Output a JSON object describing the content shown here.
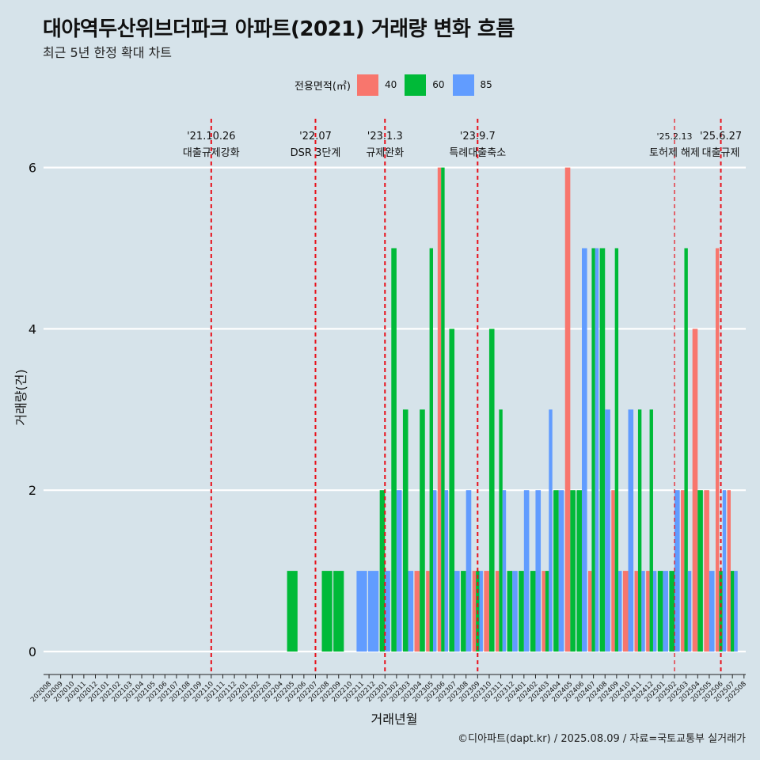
{
  "title": "대야역두산위브더파크 아파트(2021) 거래량 변화 흐름",
  "subtitle": "최근 5년 한정 확대 차트",
  "caption": "©디아파트(dapt.kr) / 2025.08.09 / 자료=국토교통부 실거래가",
  "legend": {
    "title": "전용면적(㎡)",
    "items": [
      {
        "label": "40",
        "color": "#f8766d"
      },
      {
        "label": "60",
        "color": "#00ba38"
      },
      {
        "label": "85",
        "color": "#619cff"
      }
    ]
  },
  "chart_data": {
    "type": "bar",
    "xlabel": "거래년월",
    "ylabel": "거래량(건)",
    "ylim": [
      0,
      6
    ],
    "yticks": [
      0,
      2,
      4,
      6
    ],
    "grid": true,
    "legend_position": "top",
    "categories": [
      "202008",
      "202009",
      "202010",
      "202011",
      "202012",
      "202101",
      "202102",
      "202103",
      "202104",
      "202105",
      "202106",
      "202107",
      "202108",
      "202109",
      "202110",
      "202111",
      "202112",
      "202201",
      "202202",
      "202203",
      "202204",
      "202205",
      "202206",
      "202207",
      "202208",
      "202209",
      "202210",
      "202211",
      "202212",
      "202301",
      "202302",
      "202303",
      "202304",
      "202305",
      "202306",
      "202307",
      "202308",
      "202309",
      "202310",
      "202311",
      "202312",
      "202401",
      "202402",
      "202403",
      "202404",
      "202405",
      "202406",
      "202407",
      "202408",
      "202409",
      "202410",
      "202411",
      "202412",
      "202501",
      "202502",
      "202503",
      "202504",
      "202505",
      "202506",
      "202507",
      "202508"
    ],
    "series": [
      {
        "name": "40",
        "color": "#f8766d",
        "values": {
          "202304": 1,
          "202305": 1,
          "202306": 6,
          "202309": 1,
          "202310": 1,
          "202311": 1,
          "202403": 1,
          "202405": 6,
          "202407": 1,
          "202409": 2,
          "202410": 1,
          "202411": 1,
          "202412": 1,
          "202503": 2,
          "202504": 4,
          "202505": 2,
          "202506": 5,
          "202507": 2
        }
      },
      {
        "name": "60",
        "color": "#00ba38",
        "values": {
          "202205": 1,
          "202208": 1,
          "202209": 1,
          "202301": 2,
          "202302": 5,
          "202303": 3,
          "202304": 3,
          "202305": 5,
          "202306": 6,
          "202307": 4,
          "202308": 1,
          "202309": 1,
          "202310": 4,
          "202311": 3,
          "202312": 1,
          "202401": 1,
          "202402": 1,
          "202403": 1,
          "202404": 2,
          "202405": 2,
          "202406": 2,
          "202407": 5,
          "202408": 5,
          "202409": 5,
          "202411": 3,
          "202412": 3,
          "202501": 1,
          "202502": 1,
          "202503": 5,
          "202504": 2,
          "202506": 1,
          "202507": 1
        }
      },
      {
        "name": "85",
        "color": "#619cff",
        "values": {
          "202211": 1,
          "202212": 1,
          "202301": 1,
          "202302": 2,
          "202303": 1,
          "202305": 2,
          "202306": 2,
          "202307": 1,
          "202308": 2,
          "202309": 1,
          "202311": 2,
          "202312": 1,
          "202401": 2,
          "202402": 2,
          "202403": 3,
          "202404": 2,
          "202406": 5,
          "202407": 5,
          "202408": 3,
          "202409": 1,
          "202410": 3,
          "202411": 1,
          "202412": 1,
          "202501": 1,
          "202502": 2,
          "202503": 1,
          "202505": 1,
          "202506": 2,
          "202507": 1
        }
      }
    ],
    "annotations": [
      {
        "month": "202110",
        "date": "'21.10.26",
        "label": "대출규제강화"
      },
      {
        "month": "202207",
        "date": "'22.07",
        "label": "DSR 3단계"
      },
      {
        "month": "202301",
        "date": "'23.1.3",
        "label": "규제완화"
      },
      {
        "month": "202309",
        "date": "'23.9.7",
        "label": "특례대출축소"
      },
      {
        "month": "202502",
        "date": "'25.2.13",
        "label": "토허제 해제"
      },
      {
        "month": "202506",
        "date": "'25.6.27",
        "label": "대출규제"
      }
    ]
  }
}
